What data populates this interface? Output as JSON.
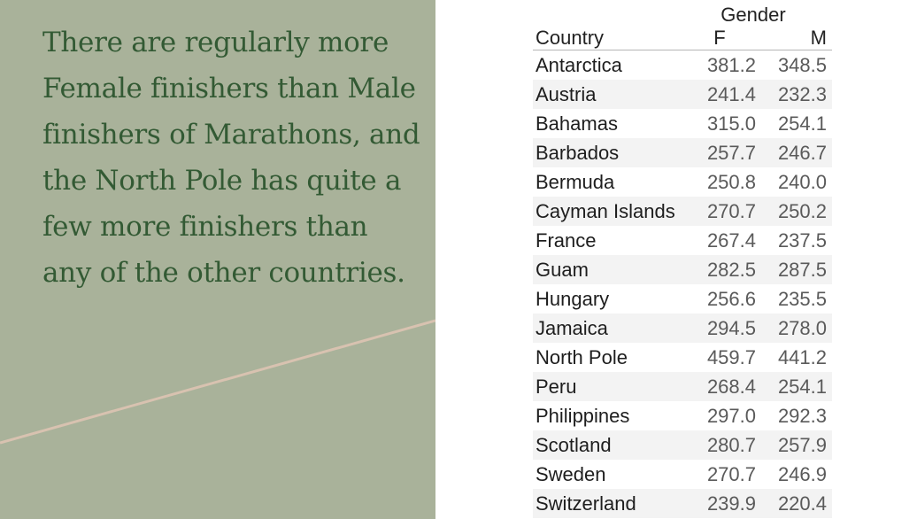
{
  "statement": "There are regularly more Female finishers than Male finishers of Marathons, and the North Pole has quite a few more finishers than any of the other countries.",
  "colors": {
    "panel_bg": "#a9b29a",
    "text_green": "#335a34",
    "divider_line": "#d8c2b0"
  },
  "table": {
    "group_header": "Gender",
    "columns": {
      "country": "Country",
      "f": "F",
      "m": "M"
    },
    "rows": [
      {
        "country": "Antarctica",
        "f": "381.2",
        "m": "348.5"
      },
      {
        "country": "Austria",
        "f": "241.4",
        "m": "232.3"
      },
      {
        "country": "Bahamas",
        "f": "315.0",
        "m": "254.1"
      },
      {
        "country": "Barbados",
        "f": "257.7",
        "m": "246.7"
      },
      {
        "country": "Bermuda",
        "f": "250.8",
        "m": "240.0"
      },
      {
        "country": "Cayman Islands",
        "f": "270.7",
        "m": "250.2"
      },
      {
        "country": "France",
        "f": "267.4",
        "m": "237.5"
      },
      {
        "country": "Guam",
        "f": "282.5",
        "m": "287.5"
      },
      {
        "country": "Hungary",
        "f": "256.6",
        "m": "235.5"
      },
      {
        "country": "Jamaica",
        "f": "294.5",
        "m": "278.0"
      },
      {
        "country": "North Pole",
        "f": "459.7",
        "m": "441.2"
      },
      {
        "country": "Peru",
        "f": "268.4",
        "m": "254.1"
      },
      {
        "country": "Philippines",
        "f": "297.0",
        "m": "292.3"
      },
      {
        "country": "Scotland",
        "f": "280.7",
        "m": "257.9"
      },
      {
        "country": "Sweden",
        "f": "270.7",
        "m": "246.9"
      },
      {
        "country": "Switzerland",
        "f": "239.9",
        "m": "220.4"
      }
    ]
  }
}
